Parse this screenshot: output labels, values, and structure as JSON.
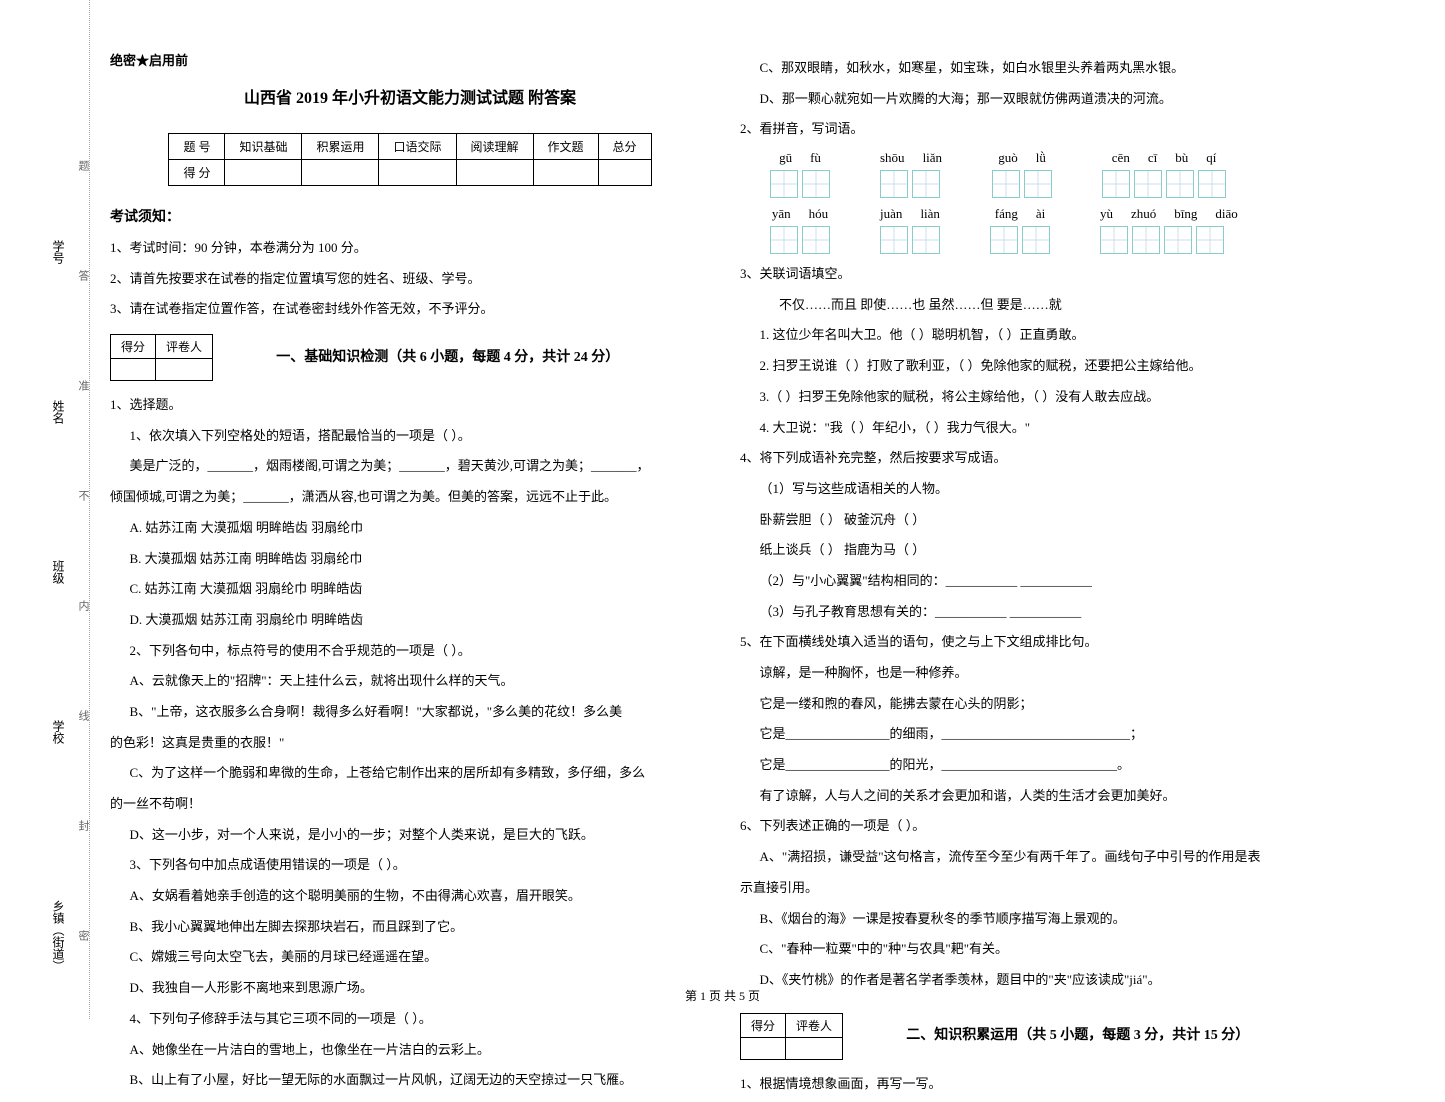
{
  "sidebar": {
    "labels": [
      "乡镇（街道）",
      "学校",
      "班级",
      "姓名",
      "学号"
    ],
    "hints": [
      "密",
      "封",
      "线",
      "内",
      "不",
      "准",
      "答",
      "题"
    ]
  },
  "secret": "绝密★启用前",
  "title": "山西省 2019 年小升初语文能力测试试题  附答案",
  "score_table": {
    "headers": [
      "题    号",
      "知识基础",
      "积累运用",
      "口语交际",
      "阅读理解",
      "作文题",
      "总分"
    ],
    "row2": "得    分"
  },
  "exam_notice": {
    "heading": "考试须知：",
    "items": [
      "1、考试时间：90 分钟，本卷满分为 100 分。",
      "2、请首先按要求在试卷的指定位置填写您的姓名、班级、学号。",
      "3、请在试卷指定位置作答，在试卷密封线外作答无效，不予评分。"
    ]
  },
  "marker": {
    "c1": "得分",
    "c2": "评卷人"
  },
  "section1": {
    "title": "一、基础知识检测（共 6 小题，每题 4 分，共计 24 分）",
    "q1": {
      "stem": "1、选择题。",
      "sub1": "1、依次填入下列空格处的短语，搭配最恰当的一项是（        ）。",
      "body": "美是广泛的，_______，烟雨楼阁,可谓之为美；_______，碧天黄沙,可谓之为美；_______，",
      "body2": "倾国倾城,可谓之为美；_______，潇洒从容,也可谓之为美。但美的答案，远远不止于此。",
      "opts": [
        "A. 姑苏江南      大漠孤烟      明眸皓齿      羽扇纶巾",
        "B. 大漠孤烟      姑苏江南      明眸皓齿      羽扇纶巾",
        "C. 姑苏江南      大漠孤烟      羽扇纶巾      明眸皓齿",
        "D. 大漠孤烟      姑苏江南      羽扇纶巾      明眸皓齿"
      ],
      "sub2": "2、下列各句中，标点符号的使用不合乎规范的一项是（        ）。",
      "s2a": "A、云就像天上的\"招牌\"：天上挂什么云，就将出现什么样的天气。",
      "s2b": "B、\"上帝，这衣服多么合身啊！裁得多么好看啊！\"大家都说，\"多么美的花纹！多么美",
      "s2b2": "的色彩！这真是贵重的衣服！\"",
      "s2c": "C、为了这样一个脆弱和卑微的生命，上苍给它制作出来的居所却有多精致，多仔细，多么",
      "s2c2": "的一丝不苟啊！",
      "s2d": "D、这一小步，对一个人来说，是小小的一步；对整个人类来说，是巨大的飞跃。",
      "sub3": "3、下列各句中加点成语使用错误的一项是（        ）。",
      "s3": [
        "A、女娲看着她亲手创造的这个聪明美丽的生物，不由得满心欢喜，眉开眼笑。",
        "B、我小心翼翼地伸出左脚去探那块岩石，而且踩到了它。",
        "C、嫦娥三号向太空飞去，美丽的月球已经遥遥在望。",
        "D、我独自一人形影不离地来到思源广场。"
      ],
      "sub4": "4、下列句子修辞手法与其它三项不同的一项是（        ）。",
      "s4": [
        "A、她像坐在一片洁白的雪地上，也像坐在一片洁白的云彩上。",
        "B、山上有了小屋，好比一望无际的水面飘过一片风帆，辽阔无边的天空掠过一只飞雁。"
      ]
    }
  },
  "col2": {
    "s4cd": [
      "C、那双眼睛，如秋水，如寒星，如宝珠，如白水银里头养着两丸黑水银。",
      "D、那一颗心就宛如一片欢腾的大海；那一双眼就仿佛两道溃决的河流。"
    ],
    "q2": "2、看拼音，写词语。",
    "pinyin": {
      "r1": [
        {
          "py": [
            "gū",
            "fù"
          ],
          "n": 2
        },
        {
          "py": [
            "shōu",
            "liǎn"
          ],
          "n": 2
        },
        {
          "py": [
            "guò",
            "lǜ"
          ],
          "n": 2
        },
        {
          "py": [
            "cēn",
            "cī",
            "bù",
            "qí"
          ],
          "n": 4
        }
      ],
      "r2": [
        {
          "py": [
            "yān",
            "hóu"
          ],
          "n": 2
        },
        {
          "py": [
            "juàn",
            "liàn"
          ],
          "n": 2
        },
        {
          "py": [
            "fáng",
            "ài"
          ],
          "n": 2
        },
        {
          "py": [
            "yù",
            "zhuó",
            "bīng",
            "diāo"
          ],
          "n": 4
        }
      ]
    },
    "q3": {
      "stem": "3、关联词语填空。",
      "hint": "不仅……而且      即使……也      虽然……但      要是……就",
      "lines": [
        "1. 这位少年名叫大卫。他（        ）聪明机智，（        ）正直勇敢。",
        "2. 扫罗王说谁（        ）打败了歌利亚，（        ）免除他家的赋税，还要把公主嫁给他。",
        "3.（        ）扫罗王免除他家的赋税，将公主嫁给他，（        ）没有人敢去应战。",
        "4. 大卫说：\"我（        ）年纪小，（        ）我力气很大。\""
      ]
    },
    "q4": {
      "stem": "4、将下列成语补充完整，然后按要求写成语。",
      "p1": "（1）写与这些成语相关的人物。",
      "rows": [
        "卧薪尝胆（          ）          破釜沉舟（          ）",
        "纸上谈兵（          ）          指鹿为马（          ）"
      ],
      "p2": "（2）与\"小心翼翼\"结构相同的：___________  ___________",
      "p3": "（3）与孔子教育思想有关的：___________  ___________"
    },
    "q5": {
      "stem": "5、在下面横线处填入适当的语句，使之与上下文组成排比句。",
      "lines": [
        "谅解，是一种胸怀，也是一种修养。",
        "它是一缕和煦的春风，能拂去蒙在心头的阴影；",
        "它是________________的细雨，_____________________________；",
        "它是________________的阳光，___________________________。",
        "有了谅解，人与人之间的关系才会更加和谐，人类的生活才会更加美好。"
      ]
    },
    "q6": {
      "stem": "6、下列表述正确的一项是（        ）。",
      "a": "A、\"满招损，谦受益\"这句格言，流传至今至少有两千年了。画线句子中引号的作用是表",
      "a2": "示直接引用。",
      "opts": [
        "B、《烟台的海》一课是按春夏秋冬的季节顺序描写海上景观的。",
        "C、\"春种一粒粟\"中的\"种\"与农具\"耙\"有关。",
        "D、《夹竹桃》的作者是著名学者季羡林，题目中的\"夹\"应该读成\"jiá\"。"
      ]
    }
  },
  "section2": {
    "title": "二、知识积累运用（共 5 小题，每题 3 分，共计 15 分）",
    "q1": "1、根据情境想象画面，再写一写。"
  },
  "footer": "第 1 页  共 5 页"
}
